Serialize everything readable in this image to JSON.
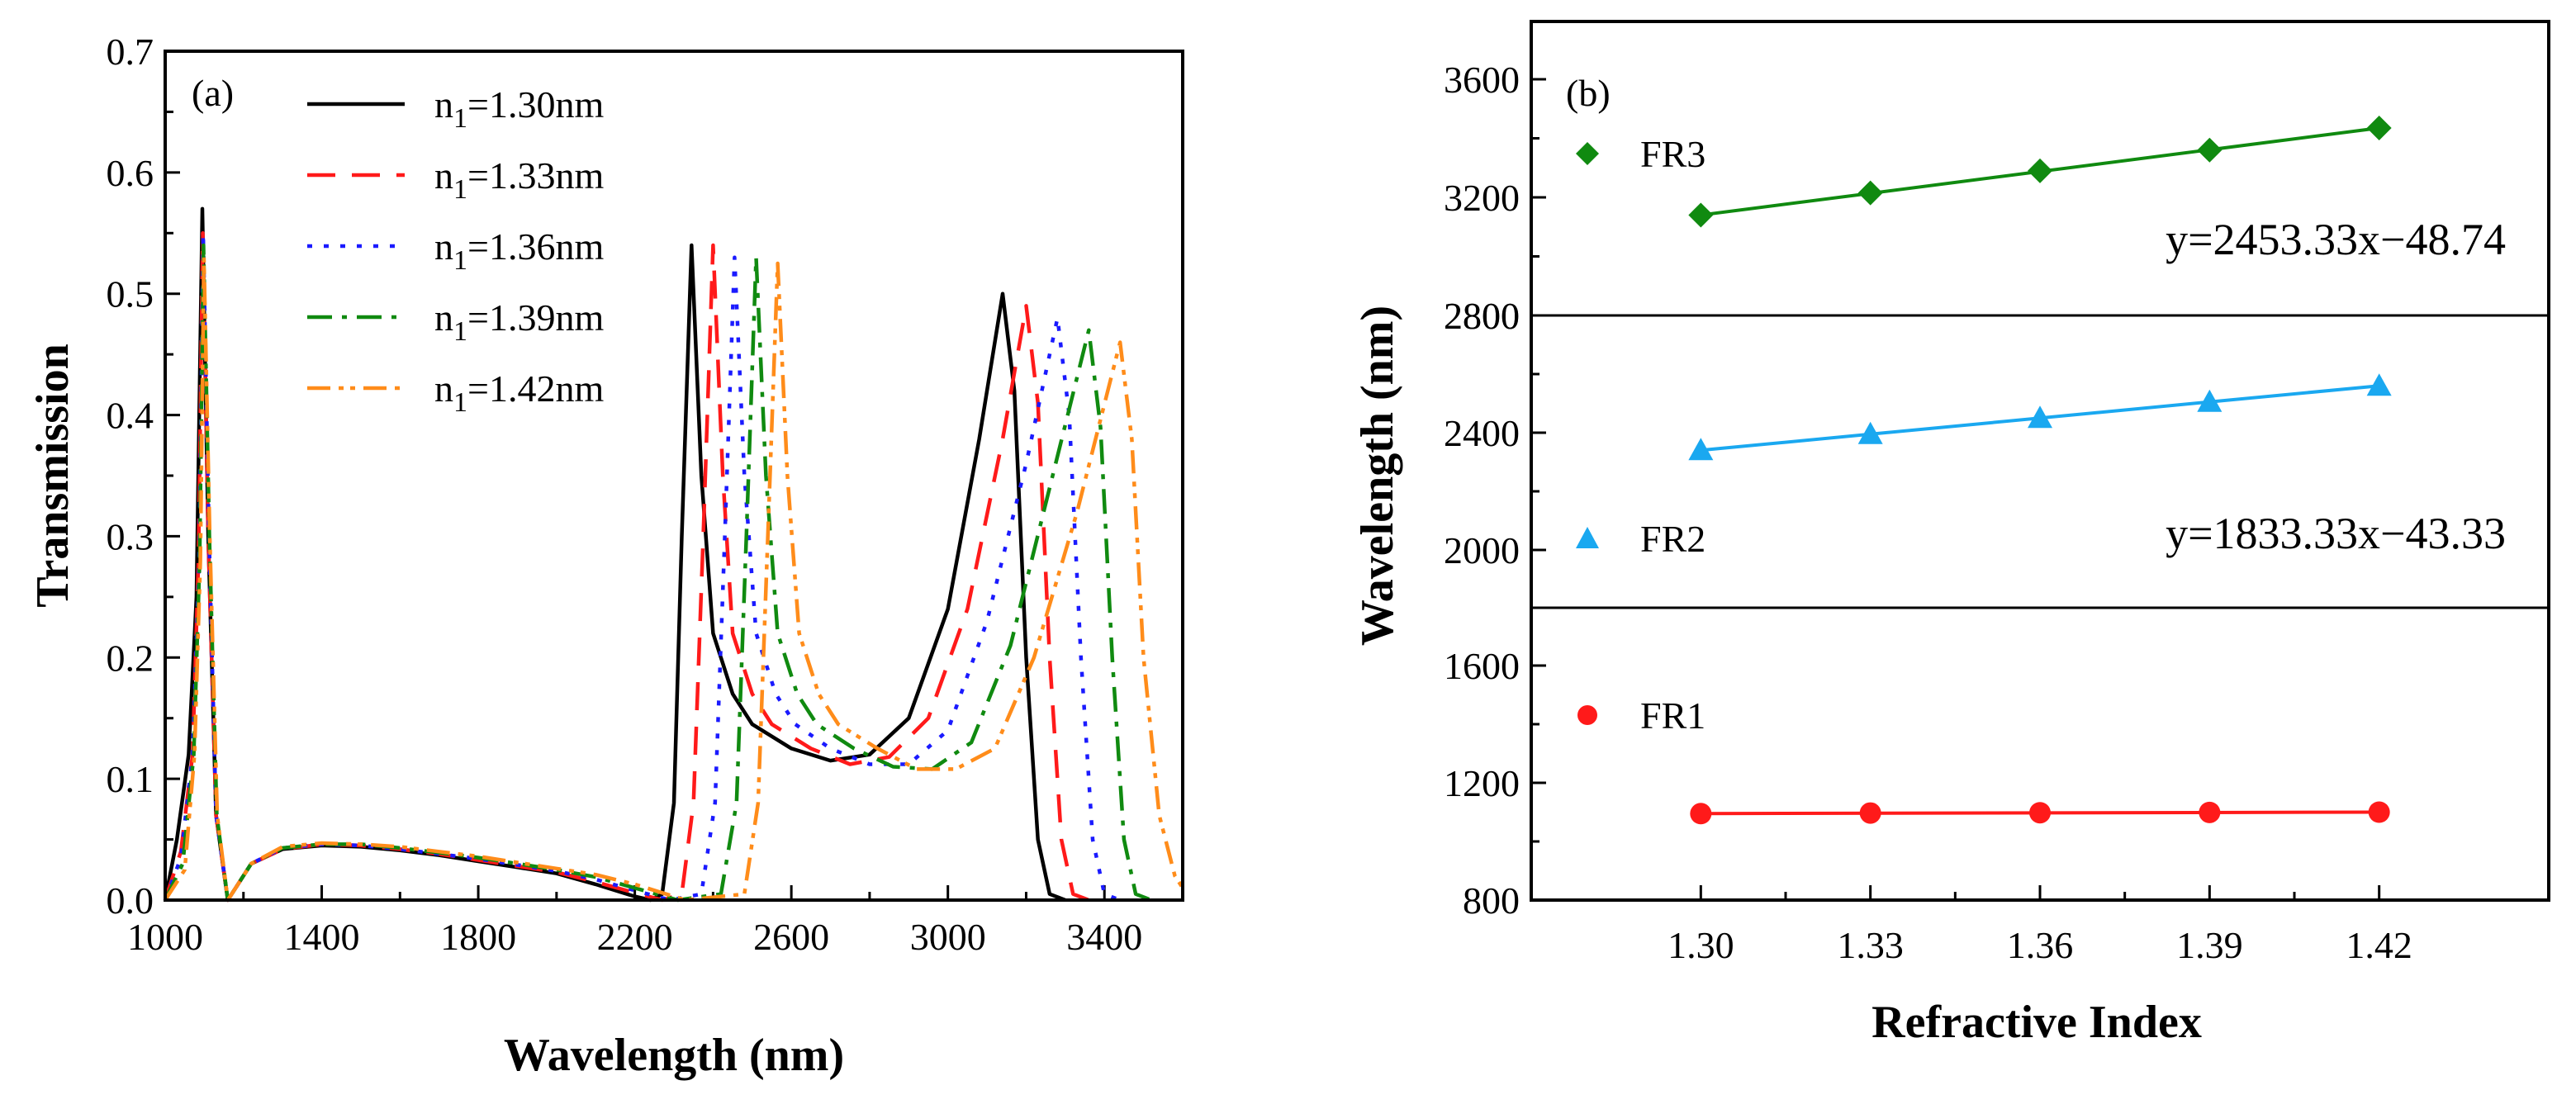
{
  "chart_data": [
    {
      "panel": "(a)",
      "type": "line",
      "xlabel": "Wavelength (nm)",
      "ylabel": "Transmission",
      "xlim": [
        1000,
        3600
      ],
      "ylim": [
        0,
        0.7
      ],
      "xticks": [
        1000,
        1400,
        1800,
        2200,
        2600,
        3000,
        3400
      ],
      "xtick_labels": [
        "1000",
        "1400",
        "1800",
        "2200",
        "2600",
        "3000",
        "3400"
      ],
      "yticks": [
        0.0,
        0.1,
        0.2,
        0.3,
        0.4,
        0.5,
        0.6,
        0.7
      ],
      "ytick_labels": [
        "0.0",
        "0.1",
        "0.2",
        "0.3",
        "0.4",
        "0.5",
        "0.6",
        "0.7"
      ],
      "legend_position": "top-left",
      "series": [
        {
          "name": "n1=1.30nm",
          "legend_main": "n",
          "legend_sub": "1",
          "legend_rest": "=1.30nm",
          "color": "#000000",
          "dash": "solid",
          "peaks": {
            "p1": [
              1095,
              0.57
            ],
            "p2": [
              2345,
              0.54
            ],
            "p3": [
              3140,
              0.5
            ]
          },
          "points": [
            [
              1000,
              0.0
            ],
            [
              1030,
              0.05
            ],
            [
              1060,
              0.12
            ],
            [
              1080,
              0.25
            ],
            [
              1095,
              0.57
            ],
            [
              1110,
              0.3
            ],
            [
              1130,
              0.07
            ],
            [
              1160,
              0.0
            ],
            [
              1180,
              0.01
            ],
            [
              1220,
              0.03
            ],
            [
              1300,
              0.042
            ],
            [
              1400,
              0.045
            ],
            [
              1500,
              0.044
            ],
            [
              1600,
              0.041
            ],
            [
              1700,
              0.037
            ],
            [
              1800,
              0.032
            ],
            [
              1900,
              0.027
            ],
            [
              2000,
              0.022
            ],
            [
              2100,
              0.013
            ],
            [
              2200,
              0.003
            ],
            [
              2240,
              0.0
            ],
            [
              2270,
              0.005
            ],
            [
              2300,
              0.08
            ],
            [
              2320,
              0.3
            ],
            [
              2345,
              0.54
            ],
            [
              2370,
              0.35
            ],
            [
              2400,
              0.22
            ],
            [
              2450,
              0.17
            ],
            [
              2500,
              0.145
            ],
            [
              2600,
              0.125
            ],
            [
              2700,
              0.115
            ],
            [
              2800,
              0.12
            ],
            [
              2900,
              0.15
            ],
            [
              3000,
              0.24
            ],
            [
              3080,
              0.38
            ],
            [
              3140,
              0.5
            ],
            [
              3170,
              0.42
            ],
            [
              3200,
              0.2
            ],
            [
              3230,
              0.05
            ],
            [
              3260,
              0.005
            ],
            [
              3300,
              0.0
            ]
          ]
        },
        {
          "name": "n1=1.33nm",
          "legend_main": "n",
          "legend_sub": "1",
          "legend_rest": "=1.33nm",
          "color": "#ff1a1a",
          "dash": "34,20",
          "peaks": {
            "p1": [
              1095,
              0.56
            ],
            "p2": [
              2400,
              0.54
            ],
            "p3": [
              3200,
              0.49
            ]
          },
          "points": [
            [
              1000,
              0.0
            ],
            [
              1040,
              0.04
            ],
            [
              1070,
              0.12
            ],
            [
              1085,
              0.28
            ],
            [
              1096,
              0.55
            ],
            [
              1110,
              0.3
            ],
            [
              1130,
              0.07
            ],
            [
              1160,
              0.0
            ],
            [
              1180,
              0.01
            ],
            [
              1220,
              0.03
            ],
            [
              1300,
              0.042
            ],
            [
              1400,
              0.046
            ],
            [
              1500,
              0.045
            ],
            [
              1600,
              0.042
            ],
            [
              1700,
              0.038
            ],
            [
              1800,
              0.033
            ],
            [
              1900,
              0.028
            ],
            [
              2000,
              0.023
            ],
            [
              2100,
              0.015
            ],
            [
              2200,
              0.006
            ],
            [
              2270,
              0.0
            ],
            [
              2320,
              0.005
            ],
            [
              2350,
              0.08
            ],
            [
              2375,
              0.3
            ],
            [
              2400,
              0.54
            ],
            [
              2425,
              0.35
            ],
            [
              2450,
              0.22
            ],
            [
              2500,
              0.17
            ],
            [
              2550,
              0.145
            ],
            [
              2650,
              0.125
            ],
            [
              2750,
              0.112
            ],
            [
              2850,
              0.118
            ],
            [
              2950,
              0.15
            ],
            [
              3050,
              0.24
            ],
            [
              3140,
              0.38
            ],
            [
              3200,
              0.49
            ],
            [
              3230,
              0.41
            ],
            [
              3260,
              0.2
            ],
            [
              3290,
              0.05
            ],
            [
              3320,
              0.005
            ],
            [
              3360,
              0.0
            ]
          ]
        },
        {
          "name": "n1=1.36nm",
          "legend_main": "n",
          "legend_sub": "1",
          "legend_rest": "=1.36nm",
          "color": "#1a1aff",
          "dash": "6,14",
          "peaks": {
            "p1": [
              1097,
              0.55
            ],
            "p2": [
              2455,
              0.53
            ],
            "p3": [
              3280,
              0.48
            ]
          },
          "points": [
            [
              1000,
              0.0
            ],
            [
              1040,
              0.035
            ],
            [
              1070,
              0.12
            ],
            [
              1087,
              0.28
            ],
            [
              1097,
              0.55
            ],
            [
              1112,
              0.3
            ],
            [
              1130,
              0.07
            ],
            [
              1160,
              0.0
            ],
            [
              1180,
              0.01
            ],
            [
              1220,
              0.03
            ],
            [
              1300,
              0.043
            ],
            [
              1400,
              0.046
            ],
            [
              1500,
              0.045
            ],
            [
              1600,
              0.042
            ],
            [
              1700,
              0.038
            ],
            [
              1800,
              0.034
            ],
            [
              1900,
              0.029
            ],
            [
              2000,
              0.024
            ],
            [
              2100,
              0.017
            ],
            [
              2200,
              0.008
            ],
            [
              2290,
              0.0
            ],
            [
              2370,
              0.005
            ],
            [
              2405,
              0.08
            ],
            [
              2430,
              0.3
            ],
            [
              2455,
              0.53
            ],
            [
              2480,
              0.35
            ],
            [
              2510,
              0.22
            ],
            [
              2560,
              0.17
            ],
            [
              2610,
              0.145
            ],
            [
              2700,
              0.125
            ],
            [
              2800,
              0.112
            ],
            [
              2900,
              0.112
            ],
            [
              3000,
              0.14
            ],
            [
              3100,
              0.23
            ],
            [
              3200,
              0.36
            ],
            [
              3280,
              0.48
            ],
            [
              3310,
              0.4
            ],
            [
              3340,
              0.2
            ],
            [
              3370,
              0.05
            ],
            [
              3400,
              0.005
            ],
            [
              3440,
              0.0
            ]
          ]
        },
        {
          "name": "n1=1.39nm",
          "legend_main": "n",
          "legend_sub": "1",
          "legend_rest": "=1.39nm",
          "color": "#108a10",
          "dash": "30,12,6,12",
          "peaks": {
            "p1": [
              1098,
              0.54
            ],
            "p2": [
              2510,
              0.53
            ],
            "p3": [
              3360,
              0.47
            ]
          },
          "points": [
            [
              1000,
              0.0
            ],
            [
              1045,
              0.03
            ],
            [
              1073,
              0.12
            ],
            [
              1088,
              0.28
            ],
            [
              1098,
              0.54
            ],
            [
              1113,
              0.3
            ],
            [
              1132,
              0.07
            ],
            [
              1160,
              0.0
            ],
            [
              1180,
              0.01
            ],
            [
              1220,
              0.03
            ],
            [
              1300,
              0.043
            ],
            [
              1400,
              0.046
            ],
            [
              1500,
              0.046
            ],
            [
              1600,
              0.043
            ],
            [
              1700,
              0.039
            ],
            [
              1800,
              0.035
            ],
            [
              1900,
              0.03
            ],
            [
              2000,
              0.025
            ],
            [
              2100,
              0.019
            ],
            [
              2200,
              0.01
            ],
            [
              2310,
              0.0
            ],
            [
              2420,
              0.005
            ],
            [
              2460,
              0.08
            ],
            [
              2485,
              0.3
            ],
            [
              2510,
              0.53
            ],
            [
              2535,
              0.35
            ],
            [
              2565,
              0.22
            ],
            [
              2615,
              0.17
            ],
            [
              2665,
              0.145
            ],
            [
              2760,
              0.125
            ],
            [
              2860,
              0.11
            ],
            [
              2960,
              0.108
            ],
            [
              3060,
              0.13
            ],
            [
              3160,
              0.21
            ],
            [
              3260,
              0.34
            ],
            [
              3360,
              0.47
            ],
            [
              3390,
              0.39
            ],
            [
              3420,
              0.2
            ],
            [
              3450,
              0.05
            ],
            [
              3480,
              0.005
            ],
            [
              3520,
              0.0
            ]
          ]
        },
        {
          "name": "n1=1.42nm",
          "legend_main": "n",
          "legend_sub": "1",
          "legend_rest": "=1.42nm",
          "color": "#ff8c1a",
          "dash": "28,10,6,8,6,10",
          "peaks": {
            "p1": [
              1099,
              0.53
            ],
            "p2": [
              2565,
              0.525
            ],
            "p3": [
              3440,
              0.46
            ]
          },
          "points": [
            [
              1000,
              0.0
            ],
            [
              1050,
              0.025
            ],
            [
              1075,
              0.12
            ],
            [
              1090,
              0.28
            ],
            [
              1099,
              0.53
            ],
            [
              1114,
              0.3
            ],
            [
              1133,
              0.07
            ],
            [
              1160,
              0.0
            ],
            [
              1180,
              0.01
            ],
            [
              1220,
              0.03
            ],
            [
              1300,
              0.044
            ],
            [
              1400,
              0.047
            ],
            [
              1500,
              0.046
            ],
            [
              1600,
              0.044
            ],
            [
              1700,
              0.04
            ],
            [
              1800,
              0.036
            ],
            [
              1900,
              0.031
            ],
            [
              2000,
              0.026
            ],
            [
              2100,
              0.021
            ],
            [
              2200,
              0.013
            ],
            [
              2330,
              0.0
            ],
            [
              2480,
              0.005
            ],
            [
              2515,
              0.08
            ],
            [
              2540,
              0.3
            ],
            [
              2565,
              0.525
            ],
            [
              2590,
              0.35
            ],
            [
              2620,
              0.22
            ],
            [
              2670,
              0.17
            ],
            [
              2720,
              0.145
            ],
            [
              2820,
              0.125
            ],
            [
              2920,
              0.108
            ],
            [
              3020,
              0.108
            ],
            [
              3120,
              0.125
            ],
            [
              3220,
              0.2
            ],
            [
              3330,
              0.32
            ],
            [
              3440,
              0.46
            ],
            [
              3470,
              0.38
            ],
            [
              3500,
              0.2
            ],
            [
              3540,
              0.07
            ],
            [
              3580,
              0.02
            ],
            [
              3600,
              0.01
            ]
          ]
        }
      ]
    },
    {
      "panel": "(b)",
      "type": "scatter",
      "xlabel": "Refractive Index",
      "ylabel": "Wavelength (nm)",
      "xlim": [
        1.27,
        1.45
      ],
      "xticks": [
        1.3,
        1.33,
        1.36,
        1.39,
        1.42
      ],
      "xtick_labels": [
        "1.30",
        "1.33",
        "1.36",
        "1.39",
        "1.42"
      ],
      "subplots": [
        {
          "name": "FR3",
          "marker": "diamond",
          "color": "#108a10",
          "ylim": [
            2800,
            3700
          ],
          "yticks": [
            2800,
            3200,
            3600
          ],
          "ytick_labels": [
            "2800",
            "3200",
            "3600"
          ],
          "x": [
            1.3,
            1.33,
            1.36,
            1.39,
            1.42
          ],
          "y": [
            3140,
            3215,
            3290,
            3360,
            3435
          ],
          "fit": "y=2453.33x−48.74"
        },
        {
          "name": "FR2",
          "marker": "triangle",
          "color": "#1aa8f0",
          "ylim": [
            1800,
            2800
          ],
          "yticks": [
            2000,
            2400,
            2800
          ],
          "ytick_labels": [
            "2000",
            "2400",
            "2800"
          ],
          "x": [
            1.3,
            1.33,
            1.36,
            1.39,
            1.42
          ],
          "y": [
            2340,
            2395,
            2450,
            2505,
            2560
          ],
          "fit": "y=1833.33x−43.33"
        },
        {
          "name": "FR1",
          "marker": "circle",
          "color": "#ff1a1a",
          "ylim": [
            800,
            1800
          ],
          "yticks": [
            800,
            1200,
            1600
          ],
          "ytick_labels": [
            "800",
            "1200",
            "1600"
          ],
          "x": [
            1.3,
            1.33,
            1.36,
            1.39,
            1.42
          ],
          "y": [
            1095,
            1097,
            1098,
            1099,
            1100
          ],
          "fit": ""
        }
      ]
    }
  ]
}
